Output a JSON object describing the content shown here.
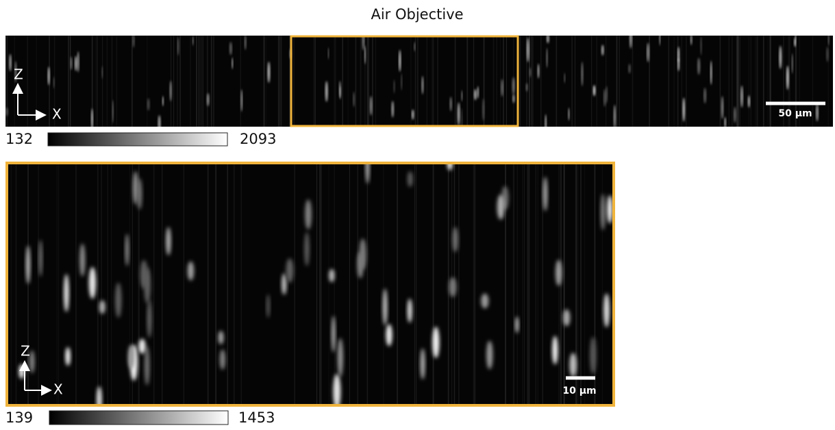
{
  "title": "Air Objective",
  "panels": [
    {
      "axis_z": "Z",
      "axis_x": "X",
      "scale_bar": "50 μm",
      "colorbar": {
        "min": 132,
        "max": 2093
      }
    },
    {
      "axis_z": "Z",
      "axis_x": "X",
      "scale_bar": "10 μm",
      "colorbar": {
        "min": 139,
        "max": 1453
      }
    }
  ]
}
